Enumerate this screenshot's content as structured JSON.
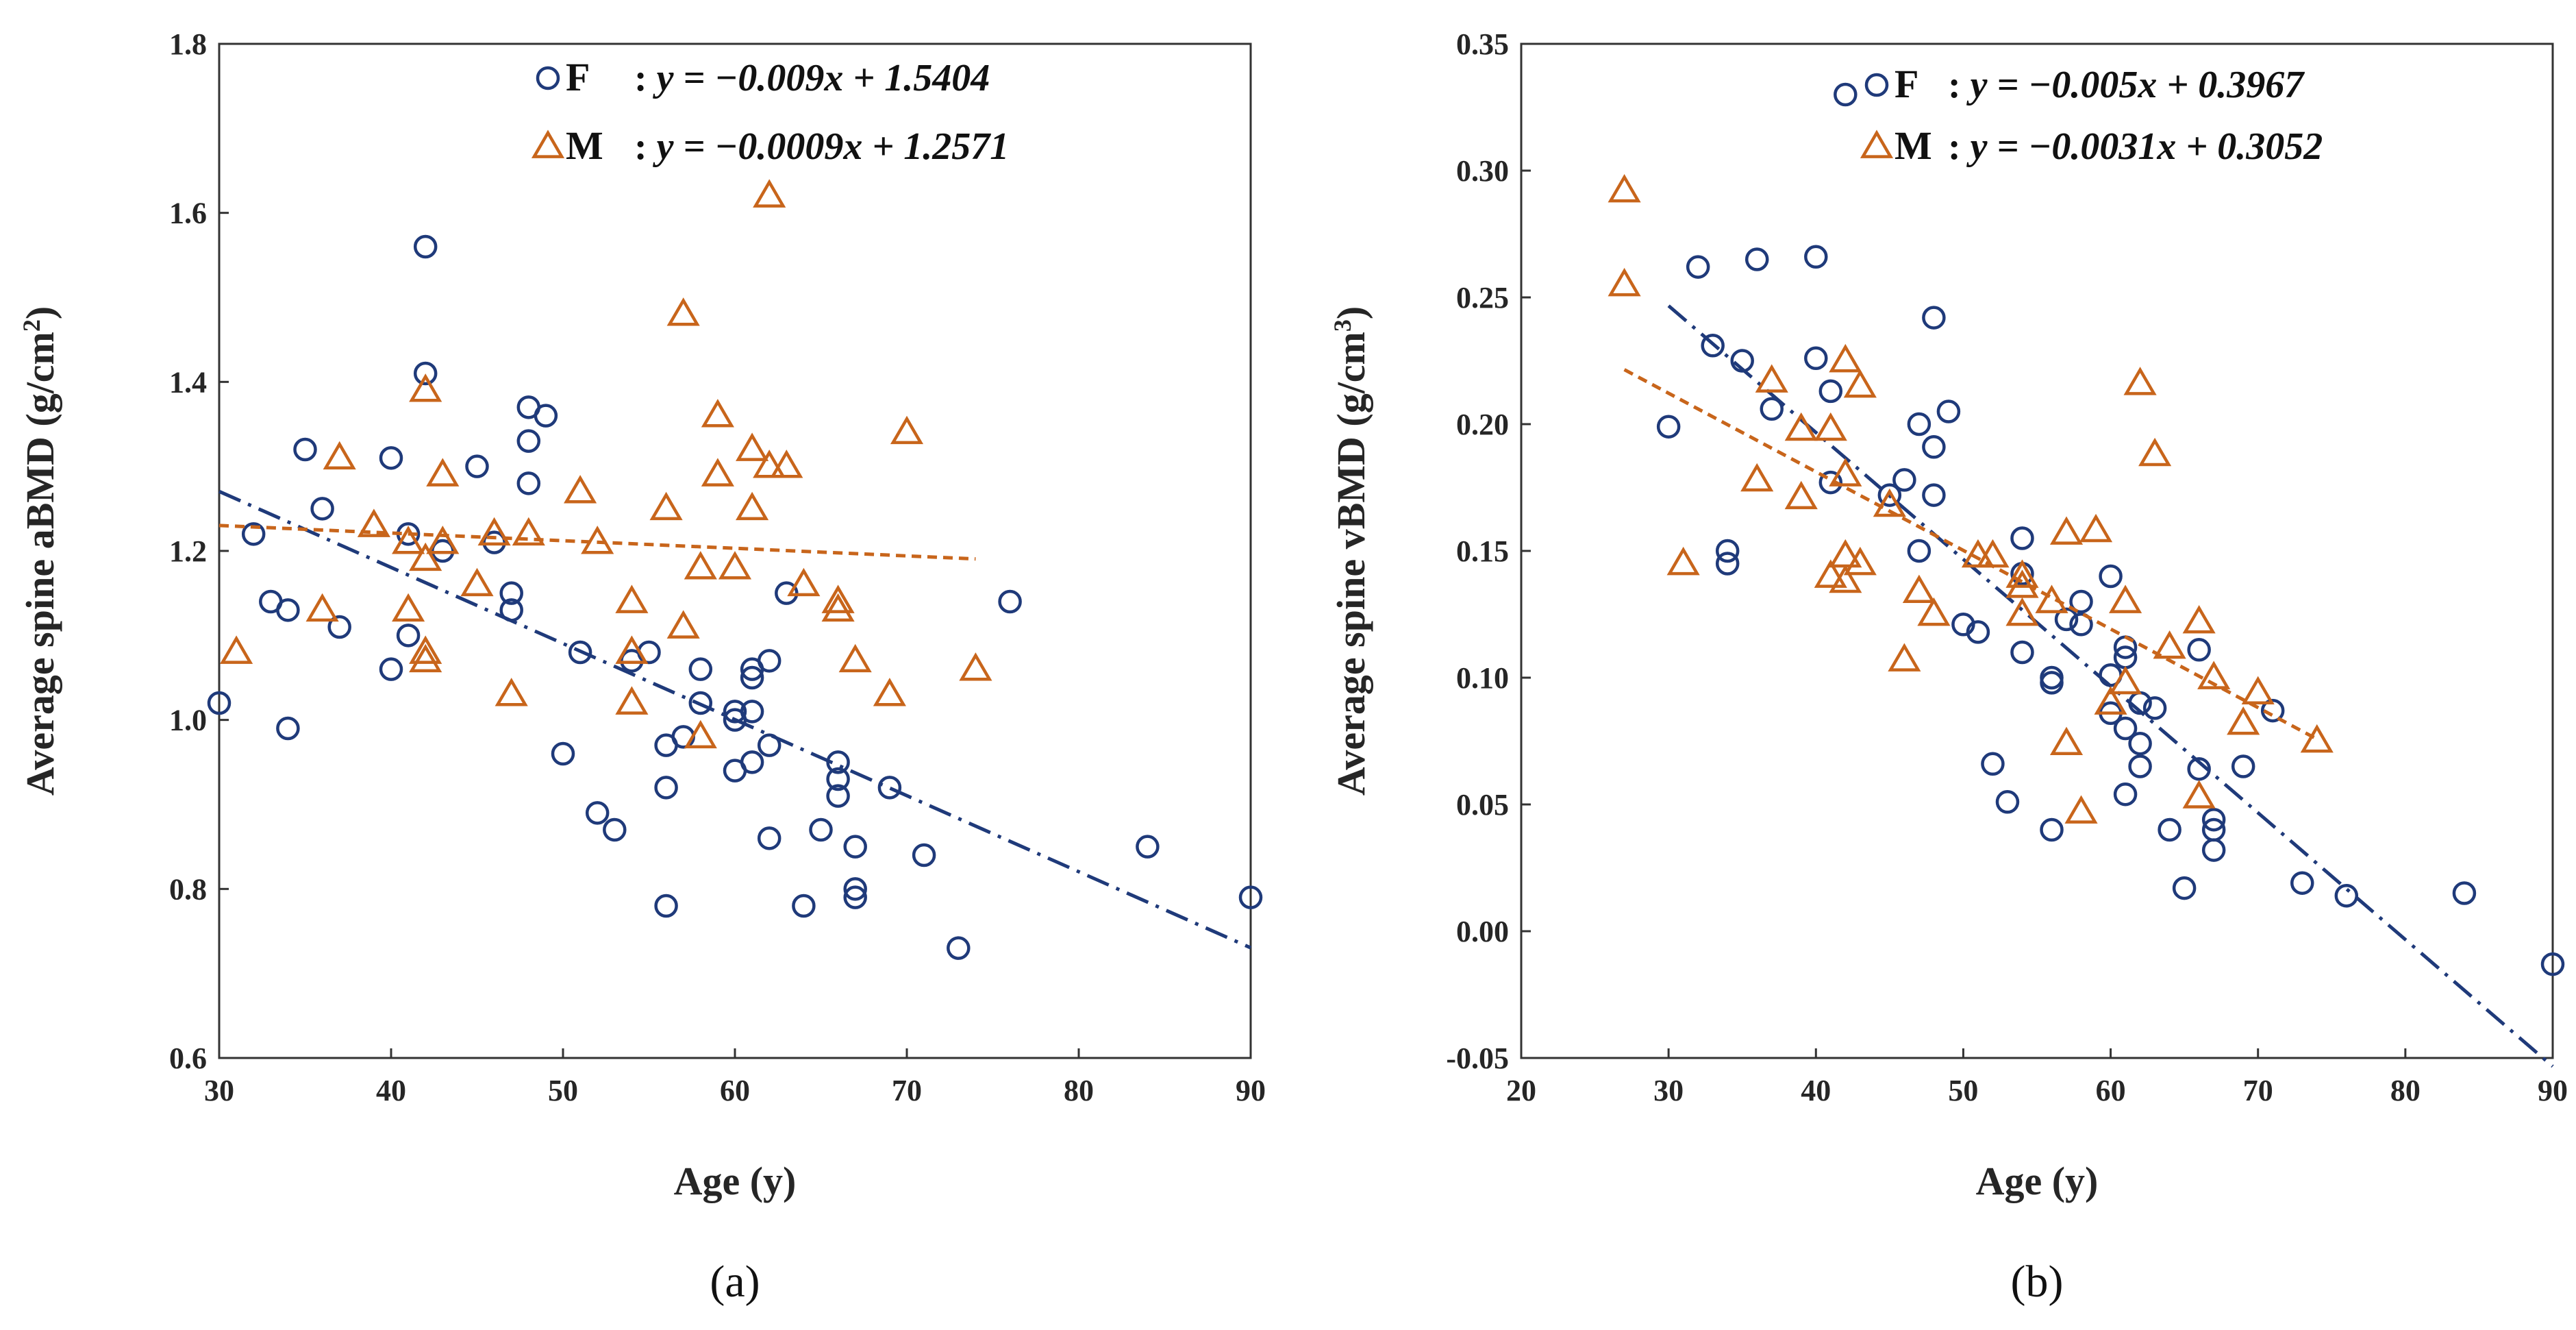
{
  "colors": {
    "female": "#1f3a7a",
    "male": "#c8651b"
  },
  "chart_data": [
    {
      "type": "scatter",
      "panel_label": "(a)",
      "xlabel": "Age (y)",
      "ylabel_main": "Average spine aBMD (g/cm",
      "ylabel_sup": "2",
      "ylabel_end": ")",
      "xlim": [
        30,
        90
      ],
      "ylim": [
        0.6,
        1.8
      ],
      "xticks": [
        30,
        40,
        50,
        60,
        70,
        80,
        90
      ],
      "yticks": [
        0.6,
        0.8,
        1.0,
        1.2,
        1.4,
        1.6,
        1.8
      ],
      "ytick_labels": [
        "0.6",
        "0.8",
        "1.0",
        "1.2",
        "1.4",
        "1.6",
        "1.8"
      ],
      "legend": [
        {
          "key": "F",
          "label": "F",
          "marker": "circle",
          "eq_prefix": ": ",
          "eq_body": "y = −0.009x + 1.5404"
        },
        {
          "key": "M",
          "label": "M",
          "marker": "triangle",
          "eq_prefix": ": ",
          "eq_body": "y = −0.0009x + 1.2571"
        }
      ],
      "series": [
        {
          "name": "F",
          "marker": "circle",
          "trend": {
            "slope": -0.009,
            "intercept": 1.5404,
            "x_range": [
              30,
              90
            ]
          },
          "points": [
            [
              30,
              1.02
            ],
            [
              32,
              1.22
            ],
            [
              33,
              1.14
            ],
            [
              34,
              1.13
            ],
            [
              34,
              0.99
            ],
            [
              35,
              1.32
            ],
            [
              36,
              1.25
            ],
            [
              37,
              1.11
            ],
            [
              40,
              1.31
            ],
            [
              40,
              1.06
            ],
            [
              41,
              1.22
            ],
            [
              41,
              1.1
            ],
            [
              42,
              1.56
            ],
            [
              42,
              1.41
            ],
            [
              43,
              1.2
            ],
            [
              45,
              1.3
            ],
            [
              46,
              1.21
            ],
            [
              47,
              1.15
            ],
            [
              47,
              1.13
            ],
            [
              48,
              1.37
            ],
            [
              48,
              1.33
            ],
            [
              48,
              1.28
            ],
            [
              49,
              1.36
            ],
            [
              50,
              0.96
            ],
            [
              51,
              1.08
            ],
            [
              52,
              0.89
            ],
            [
              53,
              0.87
            ],
            [
              54,
              1.07
            ],
            [
              55,
              1.08
            ],
            [
              56,
              0.97
            ],
            [
              56,
              0.92
            ],
            [
              56,
              0.78
            ],
            [
              57,
              0.98
            ],
            [
              58,
              1.06
            ],
            [
              58,
              1.02
            ],
            [
              60,
              1.01
            ],
            [
              60,
              1.0
            ],
            [
              60,
              0.94
            ],
            [
              61,
              1.06
            ],
            [
              61,
              1.05
            ],
            [
              61,
              1.01
            ],
            [
              61,
              0.95
            ],
            [
              62,
              1.07
            ],
            [
              62,
              0.97
            ],
            [
              62,
              0.86
            ],
            [
              63,
              1.15
            ],
            [
              64,
              0.78
            ],
            [
              65,
              0.87
            ],
            [
              66,
              0.95
            ],
            [
              66,
              0.93
            ],
            [
              66,
              0.91
            ],
            [
              67,
              0.85
            ],
            [
              67,
              0.8
            ],
            [
              67,
              0.79
            ],
            [
              69,
              0.92
            ],
            [
              71,
              0.84
            ],
            [
              73,
              0.73
            ],
            [
              76,
              1.14
            ],
            [
              84,
              0.85
            ],
            [
              90,
              0.79
            ]
          ]
        },
        {
          "name": "M",
          "marker": "triangle",
          "trend": {
            "slope": -0.0009,
            "intercept": 1.2571,
            "x_range": [
              30,
              74
            ]
          },
          "points": [
            [
              31,
              1.08
            ],
            [
              36,
              1.13
            ],
            [
              37,
              1.31
            ],
            [
              39,
              1.23
            ],
            [
              41,
              1.21
            ],
            [
              41,
              1.13
            ],
            [
              42,
              1.39
            ],
            [
              42,
              1.19
            ],
            [
              42,
              1.08
            ],
            [
              42,
              1.07
            ],
            [
              43,
              1.29
            ],
            [
              43,
              1.21
            ],
            [
              45,
              1.16
            ],
            [
              46,
              1.22
            ],
            [
              47,
              1.03
            ],
            [
              48,
              1.22
            ],
            [
              51,
              1.27
            ],
            [
              52,
              1.21
            ],
            [
              54,
              1.14
            ],
            [
              54,
              1.08
            ],
            [
              54,
              1.02
            ],
            [
              56,
              1.25
            ],
            [
              57,
              1.48
            ],
            [
              57,
              1.11
            ],
            [
              58,
              1.18
            ],
            [
              58,
              0.98
            ],
            [
              59,
              1.36
            ],
            [
              59,
              1.29
            ],
            [
              60,
              1.18
            ],
            [
              61,
              1.32
            ],
            [
              61,
              1.25
            ],
            [
              62,
              1.62
            ],
            [
              62,
              1.3
            ],
            [
              63,
              1.3
            ],
            [
              64,
              1.16
            ],
            [
              66,
              1.14
            ],
            [
              66,
              1.13
            ],
            [
              67,
              1.07
            ],
            [
              69,
              1.03
            ],
            [
              70,
              1.34
            ],
            [
              74,
              1.06
            ]
          ]
        }
      ]
    },
    {
      "type": "scatter",
      "panel_label": "(b)",
      "xlabel": "Age (y)",
      "ylabel_main": "Average spine vBMD (g/cm",
      "ylabel_sup": "3",
      "ylabel_end": ")",
      "xlim": [
        20,
        90
      ],
      "ylim": [
        -0.05,
        0.35
      ],
      "xticks": [
        20,
        30,
        40,
        50,
        60,
        70,
        80,
        90
      ],
      "yticks": [
        -0.05,
        0.0,
        0.05,
        0.1,
        0.15,
        0.2,
        0.25,
        0.3,
        0.35
      ],
      "ytick_labels": [
        "-0.05",
        "0.00",
        "0.05",
        "0.10",
        "0.15",
        "0.20",
        "0.25",
        "0.30",
        "0.35"
      ],
      "legend": [
        {
          "key": "F",
          "label": "F",
          "marker": "circle",
          "eq_prefix": ": ",
          "eq_body": "y = −0.005x + 0.3967"
        },
        {
          "key": "M",
          "label": "M",
          "marker": "triangle",
          "eq_prefix": ": ",
          "eq_body": "y = −0.0031x + 0.3052"
        }
      ],
      "series": [
        {
          "name": "F",
          "marker": "circle",
          "trend": {
            "slope": -0.005,
            "intercept": 0.3967,
            "x_range": [
              30,
              90
            ]
          },
          "points": [
            [
              30,
              0.199
            ],
            [
              32,
              0.262
            ],
            [
              33,
              0.231
            ],
            [
              34,
              0.15
            ],
            [
              34,
              0.145
            ],
            [
              35,
              0.225
            ],
            [
              36,
              0.265
            ],
            [
              37,
              0.206
            ],
            [
              40,
              0.266
            ],
            [
              40,
              0.226
            ],
            [
              41,
              0.213
            ],
            [
              41,
              0.177
            ],
            [
              42,
              0.33
            ],
            [
              45,
              0.172
            ],
            [
              46,
              0.178
            ],
            [
              47,
              0.2
            ],
            [
              47,
              0.15
            ],
            [
              48,
              0.242
            ],
            [
              48,
              0.191
            ],
            [
              48,
              0.172
            ],
            [
              49,
              0.205
            ],
            [
              50,
              0.121
            ],
            [
              51,
              0.118
            ],
            [
              52,
              0.066
            ],
            [
              53,
              0.051
            ],
            [
              54,
              0.155
            ],
            [
              54,
              0.141
            ],
            [
              54,
              0.11
            ],
            [
              56,
              0.1
            ],
            [
              56,
              0.098
            ],
            [
              56,
              0.04
            ],
            [
              57,
              0.123
            ],
            [
              58,
              0.13
            ],
            [
              58,
              0.121
            ],
            [
              60,
              0.14
            ],
            [
              60,
              0.101
            ],
            [
              60,
              0.086
            ],
            [
              61,
              0.112
            ],
            [
              61,
              0.108
            ],
            [
              61,
              0.08
            ],
            [
              61,
              0.054
            ],
            [
              62,
              0.09
            ],
            [
              62,
              0.074
            ],
            [
              62,
              0.065
            ],
            [
              63,
              0.088
            ],
            [
              64,
              0.04
            ],
            [
              65,
              0.017
            ],
            [
              66,
              0.111
            ],
            [
              66,
              0.064
            ],
            [
              67,
              0.044
            ],
            [
              67,
              0.04
            ],
            [
              67,
              0.032
            ],
            [
              69,
              0.065
            ],
            [
              71,
              0.087
            ],
            [
              73,
              0.019
            ],
            [
              76,
              0.014
            ],
            [
              84,
              0.015
            ],
            [
              90,
              -0.013
            ]
          ]
        },
        {
          "name": "M",
          "marker": "triangle",
          "trend": {
            "slope": -0.0031,
            "intercept": 0.3052,
            "x_range": [
              27,
              74
            ]
          },
          "points": [
            [
              27,
              0.292
            ],
            [
              27,
              0.255
            ],
            [
              31,
              0.145
            ],
            [
              36,
              0.178
            ],
            [
              37,
              0.217
            ],
            [
              39,
              0.198
            ],
            [
              39,
              0.171
            ],
            [
              41,
              0.198
            ],
            [
              41,
              0.14
            ],
            [
              42,
              0.225
            ],
            [
              42,
              0.18
            ],
            [
              42,
              0.148
            ],
            [
              42,
              0.138
            ],
            [
              43,
              0.215
            ],
            [
              43,
              0.145
            ],
            [
              45,
              0.168
            ],
            [
              46,
              0.107
            ],
            [
              47,
              0.134
            ],
            [
              48,
              0.125
            ],
            [
              51,
              0.148
            ],
            [
              52,
              0.148
            ],
            [
              54,
              0.14
            ],
            [
              54,
              0.136
            ],
            [
              54,
              0.125
            ],
            [
              56,
              0.13
            ],
            [
              57,
              0.157
            ],
            [
              57,
              0.074
            ],
            [
              58,
              0.047
            ],
            [
              59,
              0.158
            ],
            [
              60,
              0.09
            ],
            [
              61,
              0.13
            ],
            [
              61,
              0.098
            ],
            [
              62,
              0.216
            ],
            [
              63,
              0.188
            ],
            [
              64,
              0.112
            ],
            [
              66,
              0.122
            ],
            [
              66,
              0.053
            ],
            [
              67,
              0.1
            ],
            [
              69,
              0.082
            ],
            [
              70,
              0.094
            ],
            [
              74,
              0.075
            ]
          ]
        }
      ]
    }
  ]
}
